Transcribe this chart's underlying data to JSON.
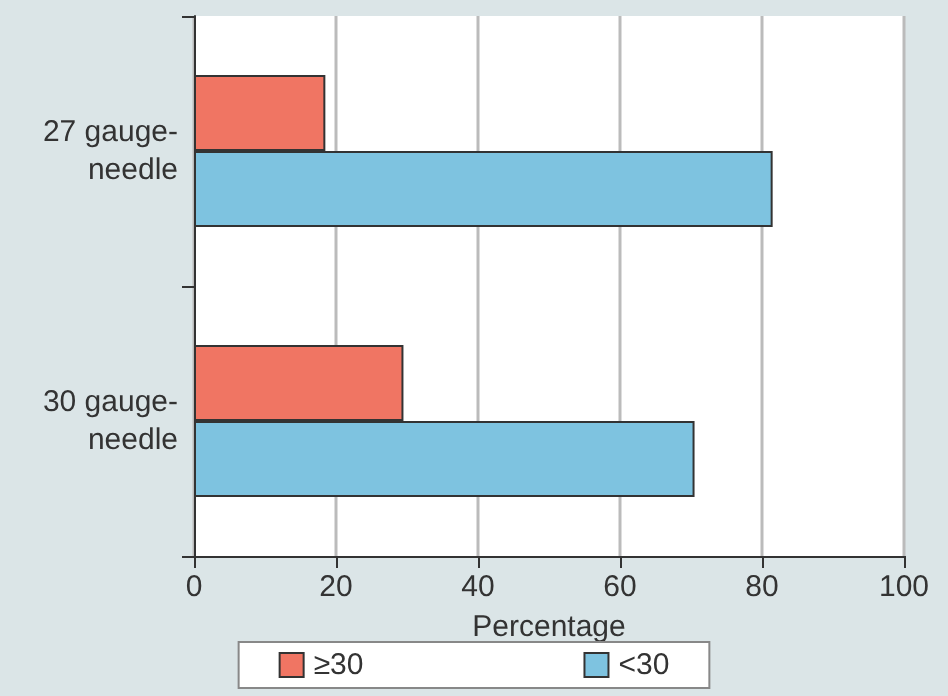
{
  "chart_data": {
    "type": "bar",
    "orientation": "horizontal",
    "xlabel": "Percentage",
    "categories": [
      "27 gauge-\nneedle",
      "30 gauge-\nneedle"
    ],
    "series": [
      {
        "name": "≥30",
        "color": "#f07563",
        "values": [
          18.5,
          29.5
        ]
      },
      {
        "name": "<30",
        "color": "#7ec3e0",
        "values": [
          81.5,
          70.5
        ]
      }
    ],
    "xlim": [
      0,
      100
    ],
    "xticks": [
      0,
      20,
      40,
      60,
      80,
      100
    ],
    "grid": "x",
    "legend": "bottom"
  }
}
